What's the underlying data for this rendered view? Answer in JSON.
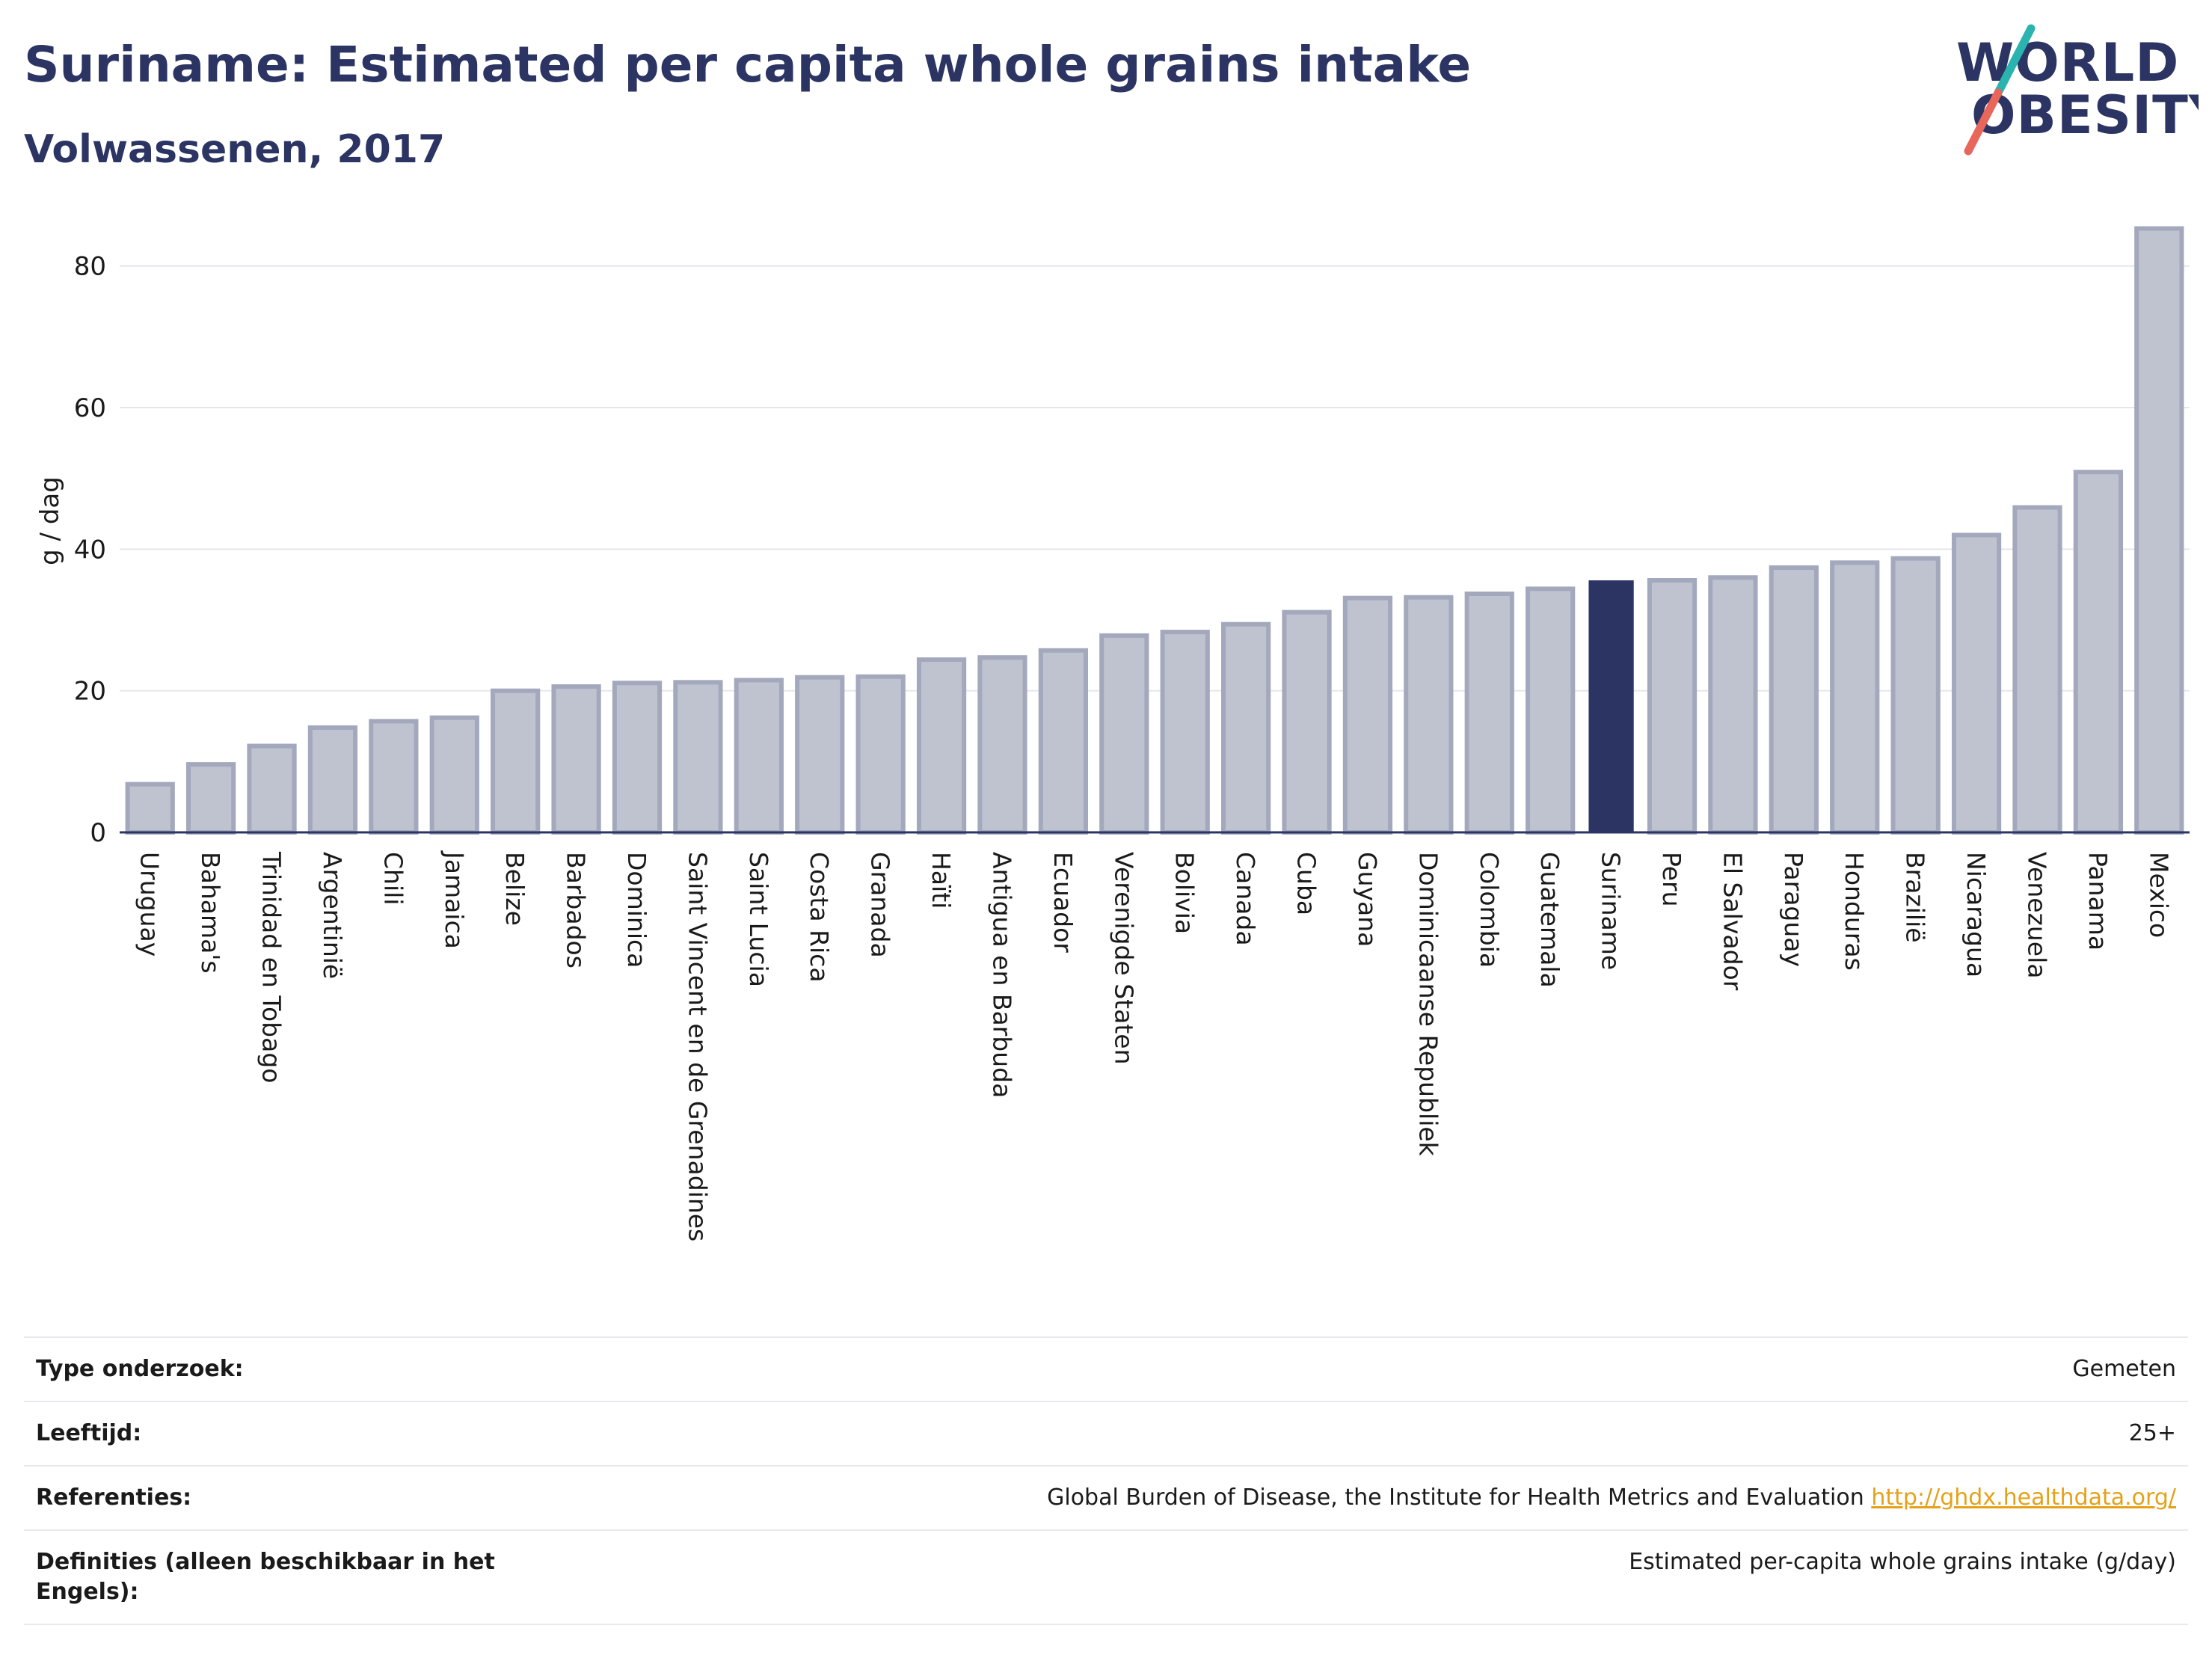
{
  "header": {
    "title": "Suriname: Estimated per capita whole grains intake",
    "subtitle": "Volwassenen, 2017"
  },
  "logo": {
    "line1": "WORLD",
    "line2": "OBESITY"
  },
  "colors": {
    "highlight": "#2b3462",
    "bar_fill": "#bfc3d0",
    "bar_edge": "#a3a8bd",
    "link": "#e3a21a"
  },
  "chart_data": {
    "type": "bar",
    "ylabel": "g / dag",
    "xlabel": "",
    "ylim": [
      0,
      88
    ],
    "yticks": [
      0,
      20,
      40,
      60,
      80
    ],
    "grid": true,
    "highlight": "Suriname",
    "categories": [
      "Uruguay",
      "Bahama's",
      "Trinidad en Tobago",
      "Argentinië",
      "Chili",
      "Jamaica",
      "Belize",
      "Barbados",
      "Dominica",
      "Saint Vincent en de Grenadines",
      "Saint Lucia",
      "Costa Rica",
      "Granada",
      "Haïti",
      "Antigua en Barbuda",
      "Ecuador",
      "Verenigde Staten",
      "Bolivia",
      "Canada",
      "Cuba",
      "Guyana",
      "Dominicaanse Republiek",
      "Colombia",
      "Guatemala",
      "Suriname",
      "Peru",
      "El Salvador",
      "Paraguay",
      "Honduras",
      "Brazilië",
      "Nicaragua",
      "Venezuela",
      "Panama",
      "Mexico"
    ],
    "values": [
      6.8,
      9.6,
      12.2,
      14.8,
      15.7,
      16.2,
      20.0,
      20.6,
      21.1,
      21.2,
      21.5,
      21.9,
      22.0,
      24.4,
      24.7,
      25.7,
      27.8,
      28.3,
      29.4,
      31.1,
      33.1,
      33.2,
      33.7,
      34.4,
      35.6,
      35.6,
      36.0,
      37.4,
      38.1,
      38.7,
      42.0,
      45.9,
      50.9,
      85.3
    ]
  },
  "meta": {
    "rows": [
      {
        "key": "Type onderzoek:",
        "value": "Gemeten"
      },
      {
        "key": "Leeftijd:",
        "value": "25+"
      },
      {
        "key": "Referenties:",
        "value": "Global Burden of Disease, the Institute for Health Metrics and Evaluation",
        "link": "http://ghdx.healthdata.org/"
      },
      {
        "key": "Definities (alleen beschikbaar in het Engels):",
        "value": "Estimated per-capita whole grains intake (g/day)"
      }
    ]
  }
}
